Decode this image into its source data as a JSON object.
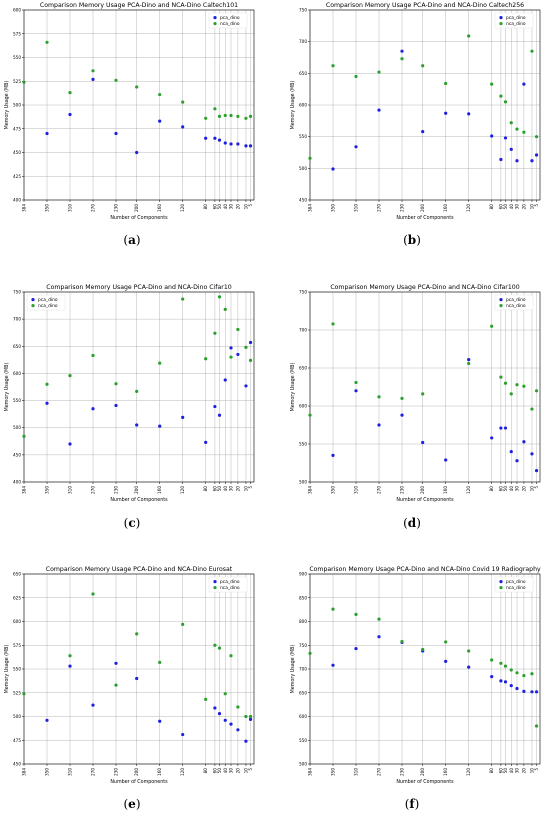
{
  "colors": {
    "pca": "#1f1fe0",
    "nca": "#2ca02c"
  },
  "shared": {
    "xlabel": "Number of Components",
    "ylabel": "Memory Usage (MB)",
    "x_categories": [
      384,
      350,
      310,
      270,
      230,
      200,
      160,
      120,
      80,
      60,
      50,
      40,
      30,
      20,
      10,
      5
    ],
    "x_tick_labels": [
      "384",
      "350",
      "310",
      "270",
      "230",
      "200",
      "160",
      "120",
      "80",
      "60",
      "50",
      "40",
      "30",
      "20",
      "10",
      "5"
    ]
  },
  "chart_data": [
    {
      "type": "scatter",
      "panel": "a",
      "caption": "(a)",
      "title": "Comparison Memory Usage PCA-Dino and NCA-Dino Caltech101",
      "xlabel": "Number of Components",
      "ylabel": "Memory Usage (MB)",
      "ylim": [
        400,
        600
      ],
      "yticks": [
        400,
        425,
        450,
        475,
        500,
        525,
        550,
        575,
        600
      ],
      "legend": "top-right",
      "grid": true,
      "series": [
        {
          "name": "pca_dino",
          "x": [
            384,
            350,
            310,
            270,
            230,
            200,
            160,
            120,
            80,
            60,
            50,
            40,
            30,
            20,
            10,
            5
          ],
          "y": [
            null,
            470,
            490,
            527,
            470,
            450,
            483,
            477,
            465,
            465,
            463,
            460,
            459,
            459,
            457,
            457
          ]
        },
        {
          "name": "nca_dino",
          "x": [
            384,
            350,
            310,
            270,
            230,
            200,
            160,
            120,
            80,
            60,
            50,
            40,
            30,
            20,
            10,
            5
          ],
          "y": [
            524,
            566,
            513,
            536,
            526,
            519,
            511,
            503,
            486,
            496,
            488,
            489,
            489,
            488,
            486,
            488
          ]
        }
      ]
    },
    {
      "type": "scatter",
      "panel": "b",
      "caption": "(b)",
      "title": "Comparison Memory Usage PCA-Dino and NCA-Dino Caltech256",
      "xlabel": "Number of Components",
      "ylabel": "Memory Usage (MB)",
      "ylim": [
        450,
        750
      ],
      "yticks": [
        450,
        500,
        550,
        600,
        650,
        700,
        750
      ],
      "legend": "top-right",
      "grid": true,
      "series": [
        {
          "name": "pca_dino",
          "x": [
            384,
            350,
            310,
            270,
            230,
            200,
            160,
            120,
            80,
            60,
            50,
            40,
            30,
            20,
            10,
            5
          ],
          "y": [
            null,
            499,
            534,
            592,
            685,
            558,
            587,
            586,
            551,
            514,
            548,
            530,
            512,
            633,
            512,
            521
          ]
        },
        {
          "name": "nca_dino",
          "x": [
            384,
            350,
            310,
            270,
            230,
            200,
            160,
            120,
            80,
            60,
            50,
            40,
            30,
            20,
            10,
            5
          ],
          "y": [
            516,
            662,
            645,
            652,
            673,
            662,
            634,
            709,
            633,
            614,
            605,
            572,
            562,
            557,
            685,
            550
          ]
        }
      ]
    },
    {
      "type": "scatter",
      "panel": "c",
      "caption": "(c)",
      "title": "Comparison Memory Usage PCA-Dino and NCA-Dino Cifar10",
      "xlabel": "Number of Components",
      "ylabel": "Memory Usage (MB)",
      "ylim": [
        400,
        750
      ],
      "yticks": [
        400,
        450,
        500,
        550,
        600,
        650,
        700,
        750
      ],
      "legend": "top-left",
      "grid": true,
      "series": [
        {
          "name": "pca_dino",
          "x": [
            384,
            350,
            310,
            270,
            230,
            200,
            160,
            120,
            80,
            60,
            50,
            40,
            30,
            20,
            10,
            5
          ],
          "y": [
            null,
            545,
            470,
            535,
            541,
            505,
            503,
            519,
            473,
            539,
            523,
            588,
            647,
            635,
            577,
            657
          ]
        },
        {
          "name": "nca_dino",
          "x": [
            384,
            350,
            310,
            270,
            230,
            200,
            160,
            120,
            80,
            60,
            50,
            40,
            30,
            20,
            10,
            5
          ],
          "y": [
            484,
            580,
            596,
            633,
            581,
            567,
            619,
            737,
            627,
            674,
            741,
            718,
            630,
            681,
            648,
            624
          ]
        }
      ]
    },
    {
      "type": "scatter",
      "panel": "d",
      "caption": "(d)",
      "title": "Comparison Memory Usage PCA-Dino and NCA-Dino Cifar100",
      "xlabel": "Number of Components",
      "ylabel": "Memory Usage (MB)",
      "ylim": [
        500,
        750
      ],
      "yticks": [
        500,
        550,
        600,
        650,
        700,
        750
      ],
      "legend": "top-right",
      "grid": true,
      "series": [
        {
          "name": "pca_dino",
          "x": [
            384,
            350,
            310,
            270,
            230,
            200,
            160,
            120,
            80,
            60,
            50,
            40,
            30,
            20,
            10,
            5
          ],
          "y": [
            null,
            535,
            620,
            575,
            588,
            552,
            529,
            661,
            558,
            571,
            571,
            540,
            528,
            553,
            537,
            515
          ]
        },
        {
          "name": "nca_dino",
          "x": [
            384,
            350,
            310,
            270,
            230,
            200,
            160,
            120,
            80,
            60,
            50,
            40,
            30,
            20,
            10,
            5
          ],
          "y": [
            588,
            708,
            631,
            612,
            610,
            616,
            null,
            656,
            705,
            638,
            630,
            616,
            628,
            626,
            596,
            620
          ]
        }
      ]
    },
    {
      "type": "scatter",
      "panel": "e",
      "caption": "(e)",
      "title": "Comparison Memory Usage PCA-Dino and NCA-Dino Eurosat",
      "xlabel": "Number of Components",
      "ylabel": "Memory Usage (MB)",
      "ylim": [
        450,
        650
      ],
      "yticks": [
        450,
        475,
        500,
        525,
        550,
        575,
        600,
        625,
        650
      ],
      "legend": "top-right",
      "grid": true,
      "series": [
        {
          "name": "pca_dino",
          "x": [
            384,
            350,
            310,
            270,
            230,
            200,
            160,
            120,
            80,
            60,
            50,
            40,
            30,
            20,
            10,
            5
          ],
          "y": [
            null,
            496,
            553,
            512,
            556,
            540,
            495,
            481,
            null,
            509,
            503,
            496,
            492,
            486,
            474,
            497
          ]
        },
        {
          "name": "nca_dino",
          "x": [
            384,
            350,
            310,
            270,
            230,
            200,
            160,
            120,
            80,
            60,
            50,
            40,
            30,
            20,
            10,
            5
          ],
          "y": [
            524,
            null,
            564,
            629,
            533,
            587,
            557,
            597,
            518,
            575,
            572,
            524,
            564,
            510,
            500,
            500
          ]
        }
      ]
    },
    {
      "type": "scatter",
      "panel": "f",
      "caption": "(f)",
      "title": "Comparison Memory Usage PCA-Dino and NCA-Dino Covid 19 Radiography",
      "xlabel": "Number of Components",
      "ylabel": "Memory Usage (MB)",
      "ylim": [
        500,
        900
      ],
      "yticks": [
        500,
        550,
        600,
        650,
        700,
        750,
        800,
        850,
        900
      ],
      "legend": "top-right",
      "grid": true,
      "series": [
        {
          "name": "pca_dino",
          "x": [
            384,
            350,
            310,
            270,
            230,
            200,
            160,
            120,
            80,
            60,
            50,
            40,
            30,
            20,
            10,
            5
          ],
          "y": [
            null,
            708,
            743,
            768,
            756,
            738,
            716,
            704,
            684,
            675,
            673,
            665,
            659,
            653,
            652,
            652
          ]
        },
        {
          "name": "nca_dino",
          "x": [
            384,
            350,
            310,
            270,
            230,
            200,
            160,
            120,
            80,
            60,
            50,
            40,
            30,
            20,
            10,
            5
          ],
          "y": [
            733,
            826,
            815,
            805,
            758,
            741,
            757,
            738,
            719,
            712,
            706,
            698,
            692,
            686,
            690,
            580
          ]
        }
      ]
    }
  ]
}
